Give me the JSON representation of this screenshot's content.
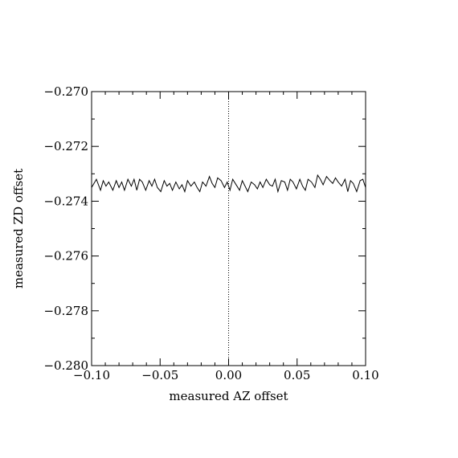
{
  "chart_data": {
    "type": "line",
    "title": "",
    "xlabel": "measured AZ offset",
    "ylabel": "measured ZD offset",
    "xlim": [
      -0.1,
      0.1
    ],
    "ylim": [
      -0.28,
      -0.27
    ],
    "x_ticks": [
      "−0.10",
      "−0.05",
      "0.00",
      "0.05",
      "0.10"
    ],
    "y_ticks": [
      "−0.270",
      "−0.272",
      "−0.274",
      "−0.276",
      "−0.278",
      "−0.280"
    ],
    "grid": false,
    "reference_line": {
      "x": 0.0,
      "style": "dotted"
    },
    "series": [
      {
        "x": [
          -0.1,
          -0.0965,
          -0.0935,
          -0.0915,
          -0.0895,
          -0.0875,
          -0.0845,
          -0.082,
          -0.08,
          -0.078,
          -0.076,
          -0.0735,
          -0.071,
          -0.069,
          -0.067,
          -0.065,
          -0.063,
          -0.0605,
          -0.058,
          -0.056,
          -0.054,
          -0.052,
          -0.0495,
          -0.047,
          -0.045,
          -0.043,
          -0.041,
          -0.0385,
          -0.036,
          -0.034,
          -0.032,
          -0.03,
          -0.0275,
          -0.025,
          -0.023,
          -0.021,
          -0.019,
          -0.0165,
          -0.014,
          -0.012,
          -0.01,
          -0.008,
          -0.0055,
          -0.003,
          -0.001,
          0.001,
          0.003,
          0.0055,
          0.008,
          0.01,
          0.012,
          0.014,
          0.0165,
          0.019,
          0.021,
          0.023,
          0.025,
          0.0275,
          0.03,
          0.032,
          0.034,
          0.036,
          0.0385,
          0.041,
          0.043,
          0.045,
          0.047,
          0.0495,
          0.052,
          0.054,
          0.056,
          0.058,
          0.0605,
          0.063,
          0.065,
          0.067,
          0.069,
          0.0715,
          0.074,
          0.076,
          0.078,
          0.08,
          0.0825,
          0.085,
          0.087,
          0.089,
          0.091,
          0.0935,
          0.096,
          0.098,
          0.1
        ],
        "y": [
          -0.2735,
          -0.2732,
          -0.2736,
          -0.27325,
          -0.27345,
          -0.2733,
          -0.2736,
          -0.27325,
          -0.2735,
          -0.2733,
          -0.2736,
          -0.2732,
          -0.27345,
          -0.2732,
          -0.2736,
          -0.2732,
          -0.2733,
          -0.2736,
          -0.27325,
          -0.27345,
          -0.2732,
          -0.2735,
          -0.27365,
          -0.27325,
          -0.27345,
          -0.27335,
          -0.2736,
          -0.2733,
          -0.27355,
          -0.2734,
          -0.27365,
          -0.27325,
          -0.27345,
          -0.2733,
          -0.2735,
          -0.27365,
          -0.2733,
          -0.27345,
          -0.2731,
          -0.27335,
          -0.2735,
          -0.27315,
          -0.27325,
          -0.2735,
          -0.2733,
          -0.2736,
          -0.2732,
          -0.2734,
          -0.2736,
          -0.27325,
          -0.27345,
          -0.27365,
          -0.2733,
          -0.2734,
          -0.27355,
          -0.2733,
          -0.2735,
          -0.2732,
          -0.2734,
          -0.27345,
          -0.2732,
          -0.27365,
          -0.27325,
          -0.2733,
          -0.2736,
          -0.2732,
          -0.2733,
          -0.27355,
          -0.2732,
          -0.27345,
          -0.2736,
          -0.2732,
          -0.2733,
          -0.2735,
          -0.27305,
          -0.2732,
          -0.2734,
          -0.2731,
          -0.27325,
          -0.27335,
          -0.27315,
          -0.2733,
          -0.27345,
          -0.2732,
          -0.27365,
          -0.27325,
          -0.27335,
          -0.27365,
          -0.27325,
          -0.2732,
          -0.2735
        ]
      }
    ]
  }
}
